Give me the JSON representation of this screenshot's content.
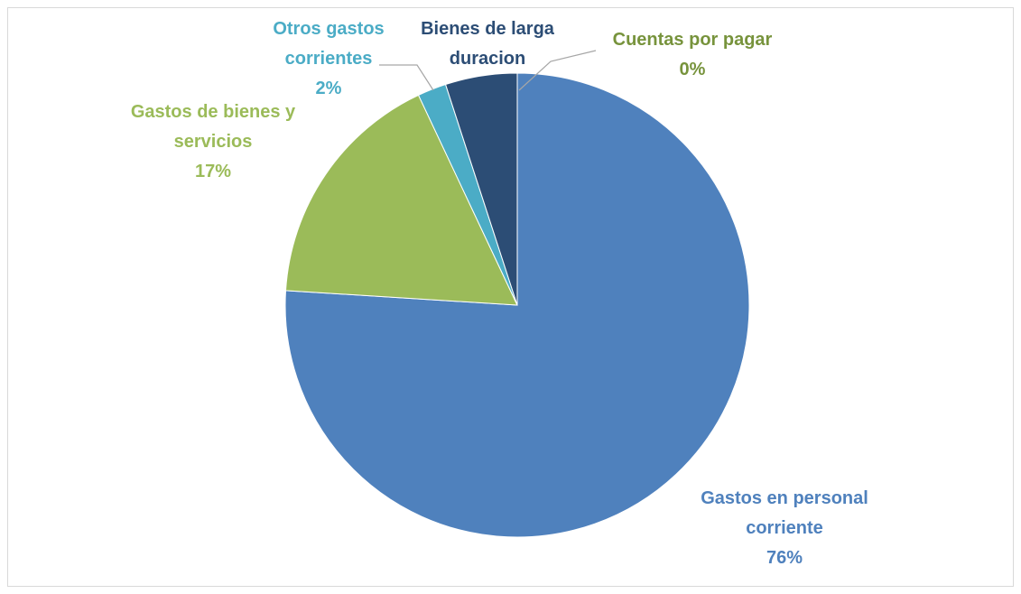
{
  "chart_data": {
    "type": "pie",
    "categories": [
      "Gastos en personal corriente",
      "Gastos de bienes y servicios",
      "Otros gastos corrientes",
      "Bienes de larga duracion",
      "Cuentas por pagar"
    ],
    "values": [
      76,
      17,
      2,
      5,
      0
    ],
    "value_labels": [
      "76%",
      "17%",
      "2%",
      null,
      "0%"
    ],
    "colors": [
      "#4f81bd",
      "#9bbb59",
      "#4bacc6",
      "#2c4d75",
      "#77933c"
    ]
  }
}
